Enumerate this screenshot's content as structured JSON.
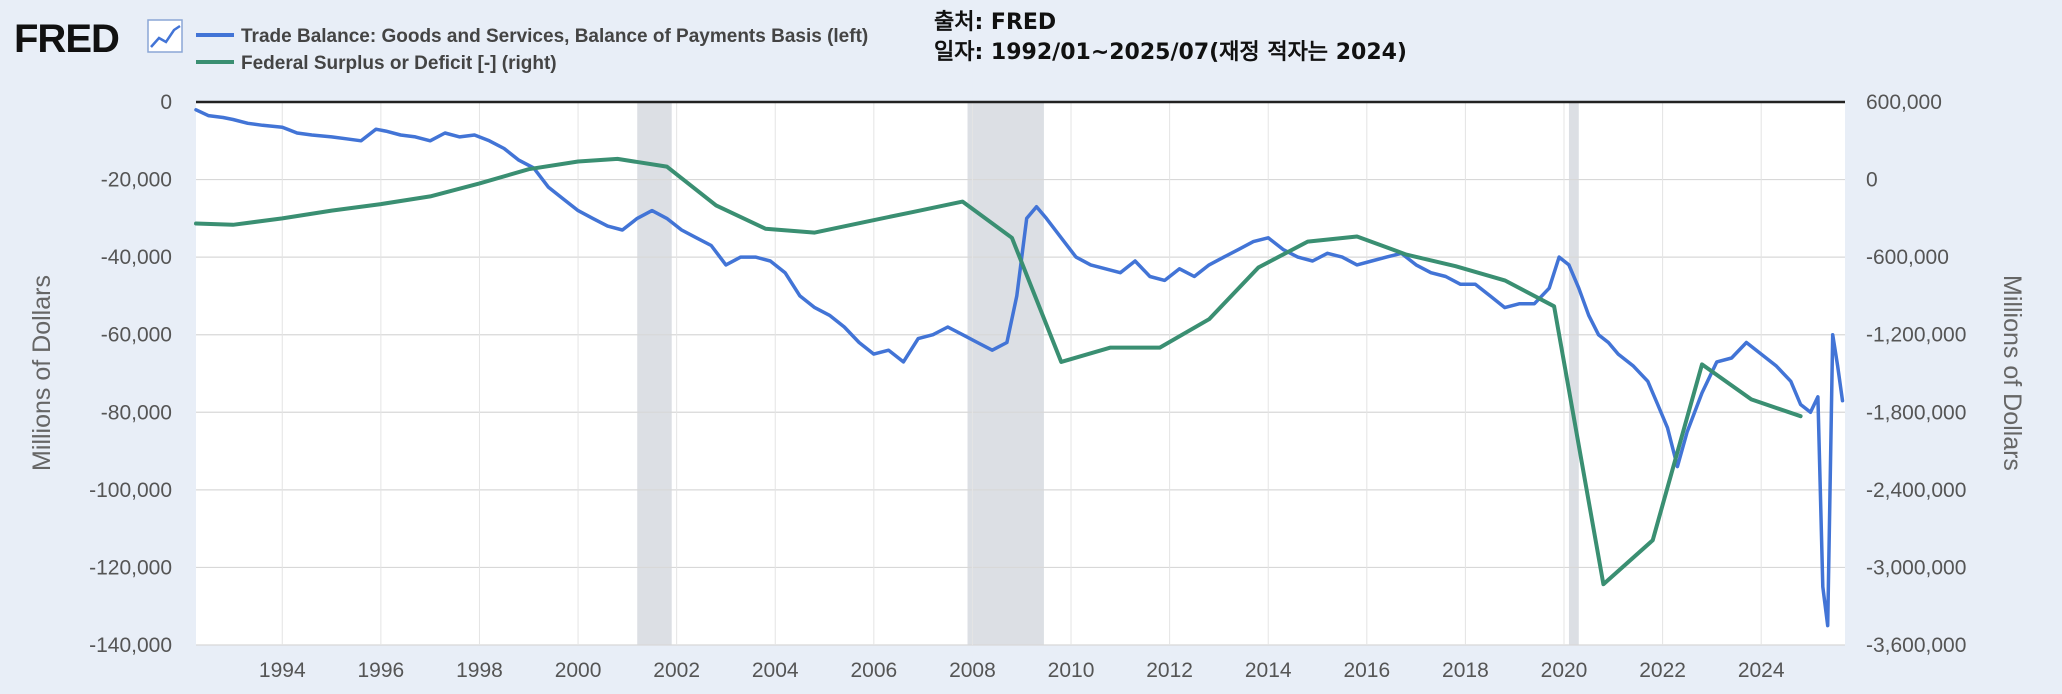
{
  "logo": {
    "text": "FRED"
  },
  "legend": [
    {
      "label": "Trade Balance: Goods and Services, Balance of Payments Basis (left)",
      "color": "#4274d6"
    },
    {
      "label": "Federal Surplus or Deficit [-] (right)",
      "color": "#3a8f72"
    }
  ],
  "note": {
    "line1": "출처: FRED",
    "line2": "일자: 1992/01~2025/07(재정 적자는 2024)"
  },
  "chart_data": {
    "type": "line",
    "title": "",
    "xlabel": "",
    "ylabel_left": "Millions of Dollars",
    "ylabel_right": "Millions of Dollars",
    "xlim": [
      1992.25,
      2025.7
    ],
    "ylim_left": [
      -140000,
      0
    ],
    "ylim_right": [
      -3600000,
      600000
    ],
    "x_ticks": [
      1994,
      1996,
      1998,
      2000,
      2002,
      2004,
      2006,
      2008,
      2010,
      2012,
      2014,
      2016,
      2018,
      2020,
      2022,
      2024
    ],
    "left_ticks": [
      "0",
      "-20,000",
      "-40,000",
      "-60,000",
      "-80,000",
      "-100,000",
      "-120,000",
      "-140,000"
    ],
    "left_tick_values": [
      0,
      -20000,
      -40000,
      -60000,
      -80000,
      -100000,
      -120000,
      -140000
    ],
    "right_ticks": [
      "600,000",
      "0",
      "-600,000",
      "-1,200,000",
      "-1,800,000",
      "-2,400,000",
      "-3,000,000",
      "-3,600,000"
    ],
    "right_tick_values": [
      600000,
      0,
      -600000,
      -1200000,
      -1800000,
      -2400000,
      -3000000,
      -3600000
    ],
    "grid": true,
    "recessions": [
      [
        2001.2,
        2001.9
      ],
      [
        2007.9,
        2009.45
      ],
      [
        2020.1,
        2020.3
      ]
    ],
    "series": [
      {
        "name": "Trade Balance: Goods and Services, Balance of Payments Basis (left)",
        "axis": "left",
        "color": "#4274d6",
        "x": [
          1992.25,
          1992.5,
          1992.8,
          1993.0,
          1993.3,
          1993.6,
          1994.0,
          1994.3,
          1994.6,
          1995.0,
          1995.3,
          1995.6,
          1995.9,
          1996.1,
          1996.4,
          1996.7,
          1997.0,
          1997.3,
          1997.6,
          1997.9,
          1998.2,
          1998.5,
          1998.8,
          1999.1,
          1999.4,
          1999.7,
          2000.0,
          2000.3,
          2000.6,
          2000.9,
          2001.2,
          2001.5,
          2001.8,
          2002.1,
          2002.4,
          2002.7,
          2003.0,
          2003.3,
          2003.6,
          2003.9,
          2004.2,
          2004.5,
          2004.8,
          2005.1,
          2005.4,
          2005.7,
          2006.0,
          2006.3,
          2006.6,
          2006.9,
          2007.2,
          2007.5,
          2007.8,
          2008.1,
          2008.4,
          2008.7,
          2008.9,
          2009.1,
          2009.3,
          2009.5,
          2009.8,
          2010.1,
          2010.4,
          2010.7,
          2011.0,
          2011.3,
          2011.6,
          2011.9,
          2012.2,
          2012.5,
          2012.8,
          2013.1,
          2013.4,
          2013.7,
          2014.0,
          2014.3,
          2014.6,
          2014.9,
          2015.2,
          2015.5,
          2015.8,
          2016.1,
          2016.4,
          2016.7,
          2017.0,
          2017.3,
          2017.6,
          2017.9,
          2018.2,
          2018.5,
          2018.8,
          2019.1,
          2019.4,
          2019.7,
          2019.9,
          2020.1,
          2020.3,
          2020.5,
          2020.7,
          2020.9,
          2021.1,
          2021.4,
          2021.7,
          2021.9,
          2022.1,
          2022.3,
          2022.5,
          2022.8,
          2023.1,
          2023.4,
          2023.7,
          2024.0,
          2024.3,
          2024.6,
          2024.8,
          2025.0,
          2025.15,
          2025.25,
          2025.35,
          2025.45,
          2025.55,
          2025.65
        ],
        "values": [
          -2000,
          -3500,
          -4000,
          -4500,
          -5500,
          -6000,
          -6500,
          -8000,
          -8500,
          -9000,
          -9500,
          -10000,
          -7000,
          -7500,
          -8500,
          -9000,
          -10000,
          -8000,
          -9000,
          -8500,
          -10000,
          -12000,
          -15000,
          -17000,
          -22000,
          -25000,
          -28000,
          -30000,
          -32000,
          -33000,
          -30000,
          -28000,
          -30000,
          -33000,
          -35000,
          -37000,
          -42000,
          -40000,
          -40000,
          -41000,
          -44000,
          -50000,
          -53000,
          -55000,
          -58000,
          -62000,
          -65000,
          -64000,
          -67000,
          -61000,
          -60000,
          -58000,
          -60000,
          -62000,
          -64000,
          -62000,
          -50000,
          -30000,
          -27000,
          -30000,
          -35000,
          -40000,
          -42000,
          -43000,
          -44000,
          -41000,
          -45000,
          -46000,
          -43000,
          -45000,
          -42000,
          -40000,
          -38000,
          -36000,
          -35000,
          -38000,
          -40000,
          -41000,
          -39000,
          -40000,
          -42000,
          -41000,
          -40000,
          -39000,
          -42000,
          -44000,
          -45000,
          -47000,
          -47000,
          -50000,
          -53000,
          -52000,
          -52000,
          -48000,
          -40000,
          -42000,
          -48000,
          -55000,
          -60000,
          -62000,
          -65000,
          -68000,
          -72000,
          -78000,
          -84000,
          -94000,
          -85000,
          -75000,
          -67000,
          -66000,
          -62000,
          -65000,
          -68000,
          -72000,
          -78000,
          -80000,
          -76000,
          -125000,
          -135000,
          -60000,
          -68000,
          -77000
        ]
      },
      {
        "name": "Federal Surplus or Deficit [-] (right)",
        "axis": "right",
        "color": "#3a8f72",
        "x": [
          1992.25,
          1993.0,
          1994.0,
          1995.0,
          1996.0,
          1997.0,
          1998.0,
          1999.0,
          2000.0,
          2000.8,
          2001.8,
          2002.8,
          2003.8,
          2004.8,
          2005.8,
          2006.8,
          2007.8,
          2008.8,
          2009.8,
          2010.8,
          2011.8,
          2012.8,
          2013.8,
          2014.8,
          2015.8,
          2016.8,
          2017.8,
          2018.8,
          2019.8,
          2020.8,
          2021.8,
          2022.8,
          2023.8,
          2024.8
        ],
        "values": [
          -340000,
          -350000,
          -300000,
          -240000,
          -190000,
          -130000,
          -30000,
          80000,
          140000,
          160000,
          100000,
          -200000,
          -380000,
          -410000,
          -330000,
          -250000,
          -170000,
          -450000,
          -1410000,
          -1300000,
          -1300000,
          -1080000,
          -680000,
          -480000,
          -440000,
          -580000,
          -670000,
          -780000,
          -980000,
          -3130000,
          -2790000,
          -1430000,
          -1700000,
          -1830000
        ]
      }
    ]
  }
}
